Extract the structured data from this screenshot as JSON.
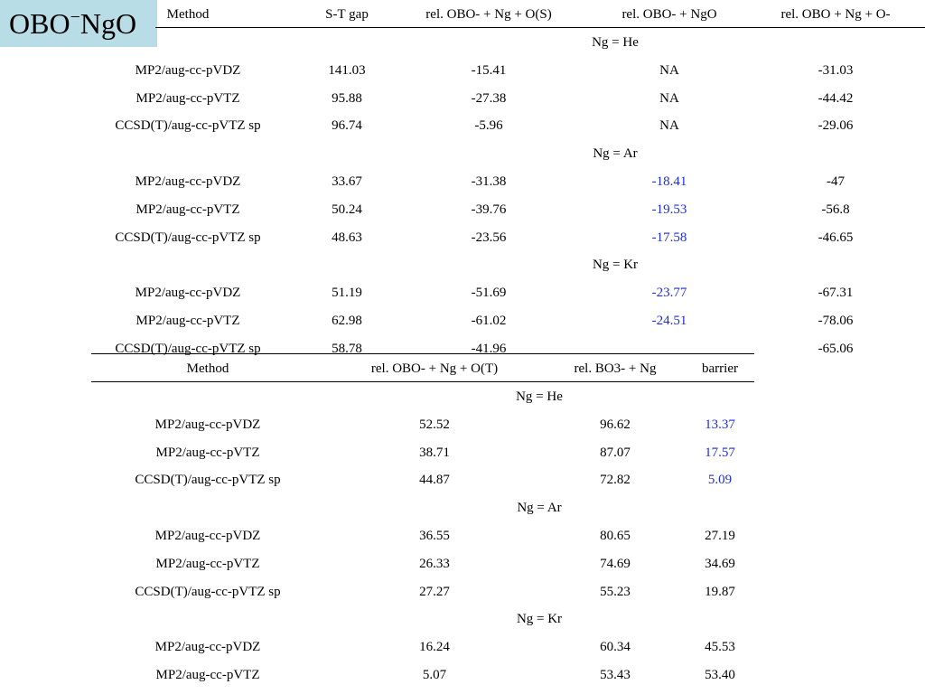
{
  "slide": {
    "title_main": "OBO",
    "title_sup": "−",
    "title_rest": "NgO",
    "accent_color": "#b9dde6",
    "highlight_color": "#1f2fd6"
  },
  "table1": {
    "headers": [
      "Method",
      "S-T gap",
      "rel. OBO- + Ng + O(S)",
      "rel. OBO- + NgO",
      "rel. OBO + Ng + O-"
    ],
    "groups": [
      {
        "label": "Ng = He",
        "rows": [
          {
            "method": "MP2/aug-cc-pVDZ",
            "st_gap": "141.03",
            "rel_os": "-15.41",
            "rel_ngo": "NA",
            "rel_o_minus": "-31.03"
          },
          {
            "method": "MP2/aug-cc-pVTZ",
            "st_gap": "95.88",
            "rel_os": "-27.38",
            "rel_ngo": "NA",
            "rel_o_minus": "-44.42"
          },
          {
            "method": "CCSD(T)/aug-cc-pVTZ sp",
            "st_gap": "96.74",
            "rel_os": "-5.96",
            "rel_ngo": "NA",
            "rel_o_minus": "-29.06"
          }
        ]
      },
      {
        "label": "Ng = Ar",
        "rows": [
          {
            "method": "MP2/aug-cc-pVDZ",
            "st_gap": "33.67",
            "rel_os": "-31.38",
            "rel_ngo": "-18.41",
            "rel_o_minus": "-47"
          },
          {
            "method": "MP2/aug-cc-pVTZ",
            "st_gap": "50.24",
            "rel_os": "-39.76",
            "rel_ngo": "-19.53",
            "rel_o_minus": "-56.8"
          },
          {
            "method": "CCSD(T)/aug-cc-pVTZ sp",
            "st_gap": "48.63",
            "rel_os": "-23.56",
            "rel_ngo": "-17.58",
            "rel_o_minus": "-46.65"
          }
        ]
      },
      {
        "label": "Ng = Kr",
        "rows": [
          {
            "method": "MP2/aug-cc-pVDZ",
            "st_gap": "51.19",
            "rel_os": "-51.69",
            "rel_ngo": "-23.77",
            "rel_o_minus": "-67.31"
          },
          {
            "method": "MP2/aug-cc-pVTZ",
            "st_gap": "62.98",
            "rel_os": "-61.02",
            "rel_ngo": "-24.51",
            "rel_o_minus": "-78.06"
          },
          {
            "method": "CCSD(T)/aug-cc-pVTZ sp",
            "st_gap": "58.78",
            "rel_os": "-41.96",
            "rel_ngo": "",
            "rel_o_minus": "-65.06"
          }
        ]
      }
    ]
  },
  "table2": {
    "headers": [
      "Method",
      "rel. OBO- + Ng + O(T)",
      "rel. BO3- + Ng",
      "barrier"
    ],
    "groups": [
      {
        "label": "Ng = He",
        "rows": [
          {
            "method": "MP2/aug-cc-pVDZ",
            "rel_ot": "52.52",
            "rel_bo3": "96.62",
            "barrier": "13.37"
          },
          {
            "method": "MP2/aug-cc-pVTZ",
            "rel_ot": "38.71",
            "rel_bo3": "87.07",
            "barrier": "17.57"
          },
          {
            "method": "CCSD(T)/aug-cc-pVTZ sp",
            "rel_ot": "44.87",
            "rel_bo3": "72.82",
            "barrier": "5.09"
          }
        ]
      },
      {
        "label": "Ng = Ar",
        "rows": [
          {
            "method": "MP2/aug-cc-pVDZ",
            "rel_ot": "36.55",
            "rel_bo3": "80.65",
            "barrier": "27.19"
          },
          {
            "method": "MP2/aug-cc-pVTZ",
            "rel_ot": "26.33",
            "rel_bo3": "74.69",
            "barrier": "34.69"
          },
          {
            "method": "CCSD(T)/aug-cc-pVTZ sp",
            "rel_ot": "27.27",
            "rel_bo3": "55.23",
            "barrier": "19.87"
          }
        ]
      },
      {
        "label": "Ng = Kr",
        "rows": [
          {
            "method": "MP2/aug-cc-pVDZ",
            "rel_ot": "16.24",
            "rel_bo3": "60.34",
            "barrier": "45.53"
          },
          {
            "method": "MP2/aug-cc-pVTZ",
            "rel_ot": "5.07",
            "rel_bo3": "53.43",
            "barrier": "53.40"
          }
        ]
      }
    ]
  }
}
